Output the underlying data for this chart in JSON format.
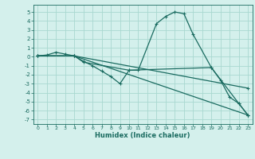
{
  "xlabel": "Humidex (Indice chaleur)",
  "bg_color": "#d4f0ec",
  "grid_color": "#a8d8d0",
  "line_color": "#1a6b60",
  "xlim": [
    -0.5,
    23.5
  ],
  "ylim": [
    -7.5,
    5.8
  ],
  "yticks": [
    -7,
    -6,
    -5,
    -4,
    -3,
    -2,
    -1,
    0,
    1,
    2,
    3,
    4,
    5
  ],
  "xticks": [
    0,
    1,
    2,
    3,
    4,
    5,
    6,
    7,
    8,
    9,
    10,
    11,
    12,
    13,
    14,
    15,
    16,
    17,
    18,
    19,
    20,
    21,
    22,
    23
  ],
  "line1_x": [
    0,
    1,
    2,
    3,
    4,
    5,
    10,
    11,
    13,
    14,
    15,
    16,
    17,
    19,
    22,
    23
  ],
  "line1_y": [
    0.1,
    0.2,
    0.5,
    0.3,
    0.1,
    -0.6,
    -1.5,
    -1.5,
    3.7,
    4.5,
    5.0,
    4.8,
    2.5,
    -1.2,
    -5.2,
    -6.5
  ],
  "line2_x": [
    0,
    4,
    5,
    6,
    7,
    8,
    9,
    10,
    19,
    20,
    21,
    22,
    23
  ],
  "line2_y": [
    0.1,
    0.1,
    -0.5,
    -1.0,
    -1.6,
    -2.2,
    -3.0,
    -1.5,
    -1.2,
    -2.6,
    -4.5,
    -5.2,
    -6.5
  ],
  "line3_x": [
    0,
    4,
    23
  ],
  "line3_y": [
    0.1,
    0.1,
    -6.5
  ],
  "line4_x": [
    0,
    4,
    23
  ],
  "line4_y": [
    0.1,
    0.1,
    -3.5
  ]
}
